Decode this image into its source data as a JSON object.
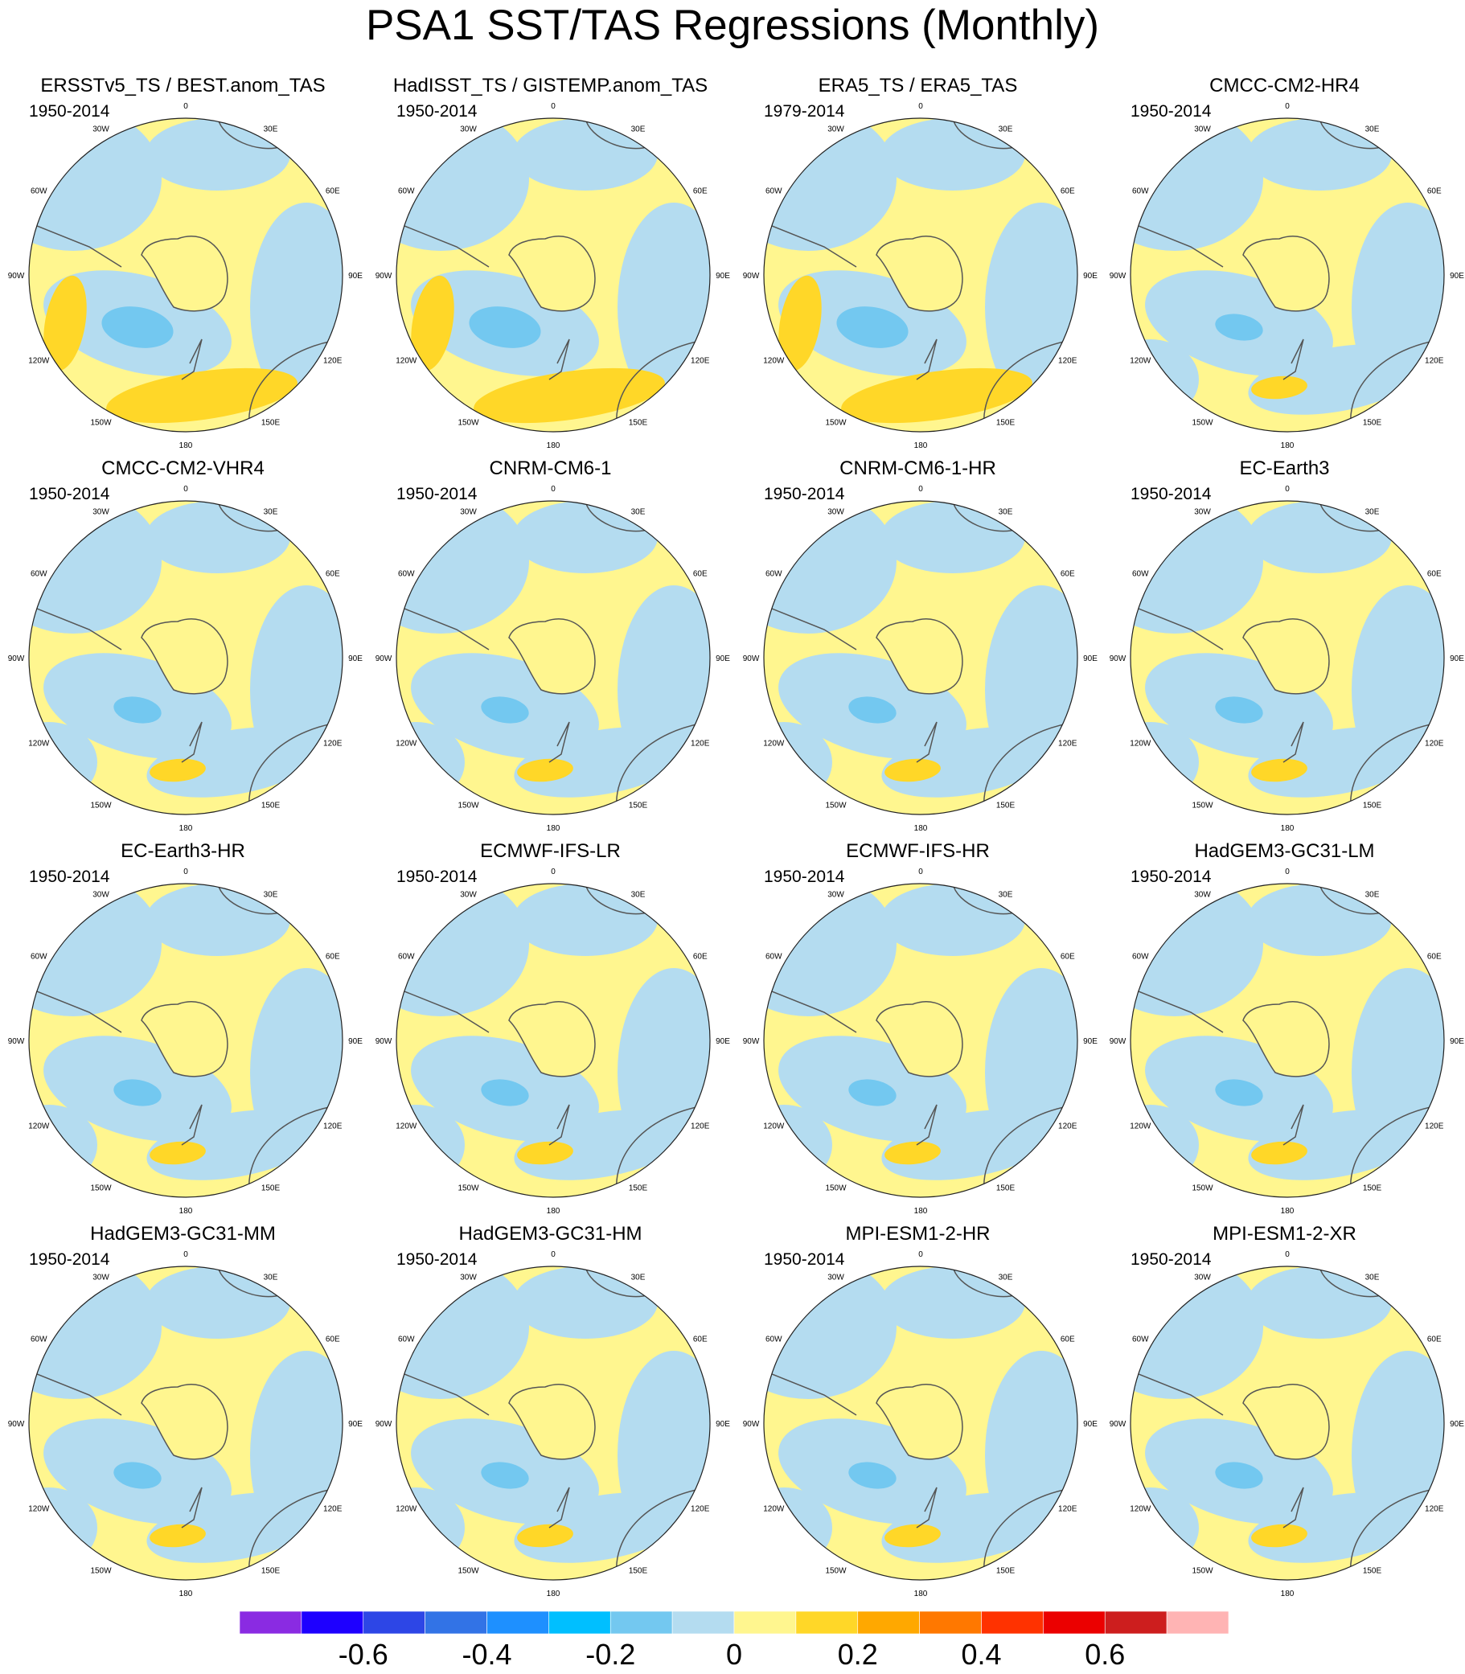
{
  "title": "PSA1 SST/TAS Regressions (Monthly)",
  "map": {
    "projection": "south polar stereographic",
    "lon_labels": [
      "0",
      "30E",
      "60E",
      "90E",
      "120E",
      "150E",
      "180",
      "150W",
      "120W",
      "90W",
      "60W",
      "30W"
    ],
    "land_style": "gray coastlines"
  },
  "panels": [
    {
      "title": "ERSSTv5_TS / BEST.anom_TAS",
      "period": "1950-2014"
    },
    {
      "title": "HadISST_TS / GISTEMP.anom_TAS",
      "period": "1950-2014"
    },
    {
      "title": "ERA5_TS / ERA5_TAS",
      "period": "1979-2014"
    },
    {
      "title": "CMCC-CM2-HR4",
      "period": "1950-2014"
    },
    {
      "title": "CMCC-CM2-VHR4",
      "period": "1950-2014"
    },
    {
      "title": "CNRM-CM6-1",
      "period": "1950-2014"
    },
    {
      "title": "CNRM-CM6-1-HR",
      "period": "1950-2014"
    },
    {
      "title": "EC-Earth3",
      "period": "1950-2014"
    },
    {
      "title": "EC-Earth3-HR",
      "period": "1950-2014"
    },
    {
      "title": "ECMWF-IFS-LR",
      "period": "1950-2014"
    },
    {
      "title": "ECMWF-IFS-HR",
      "period": "1950-2014"
    },
    {
      "title": "HadGEM3-GC31-LM",
      "period": "1950-2014"
    },
    {
      "title": "HadGEM3-GC31-MM",
      "period": "1950-2014"
    },
    {
      "title": "HadGEM3-GC31-HM",
      "period": "1950-2014"
    },
    {
      "title": "MPI-ESM1-2-HR",
      "period": "1950-2014"
    },
    {
      "title": "MPI-ESM1-2-XR",
      "period": "1950-2014"
    }
  ],
  "colorbar": {
    "colors": [
      "#8a2be2",
      "#1e00ff",
      "#2d46e6",
      "#3273e6",
      "#1e90ff",
      "#00bfff",
      "#73c8f0",
      "#b4dcf0",
      "#fff68f",
      "#ffd728",
      "#ffa800",
      "#ff7800",
      "#ff3200",
      "#eb0000",
      "#cd1e1e",
      "#ffb4b4"
    ],
    "tick_labels": [
      "-0.6",
      "-0.4",
      "-0.2",
      "0",
      "0.2",
      "0.4",
      "0.6"
    ],
    "tick_values": [
      -0.6,
      -0.4,
      -0.2,
      0,
      0.2,
      0.4,
      0.6
    ],
    "range": [
      -0.8,
      0.8
    ]
  }
}
